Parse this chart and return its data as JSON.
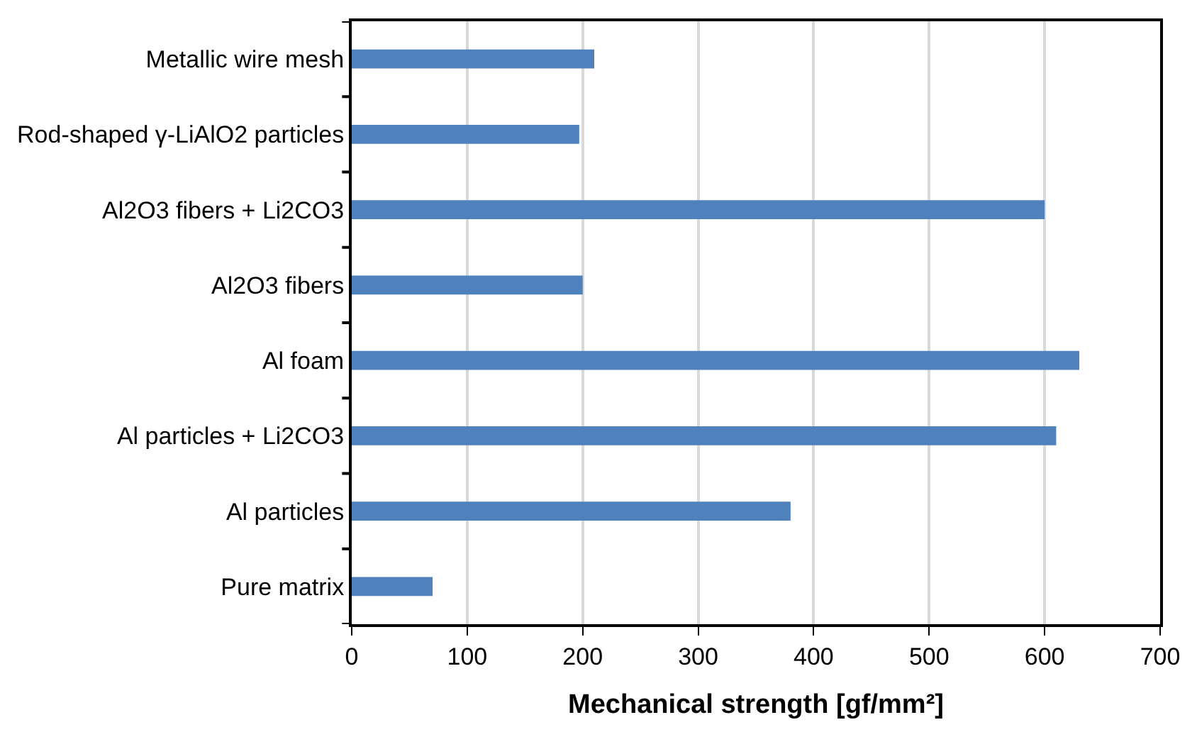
{
  "chart_data": {
    "type": "bar",
    "orientation": "horizontal",
    "xlabel": "Mechanical strength [gf/mm²]",
    "categories": [
      "Metallic wire mesh",
      "Rod-shaped γ-LiAlO2 particles",
      "Al2O3 fibers + Li2CO3",
      "Al2O3 fibers",
      "Al foam",
      "Al particles + Li2CO3",
      "Al particles",
      "Pure matrix"
    ],
    "values": [
      210,
      197,
      600,
      200,
      630,
      610,
      380,
      70
    ],
    "color": "#4f81bd",
    "xlim": [
      0,
      700
    ],
    "xticks": [
      0,
      100,
      200,
      300,
      400,
      500,
      600,
      700
    ],
    "grid": "x"
  }
}
